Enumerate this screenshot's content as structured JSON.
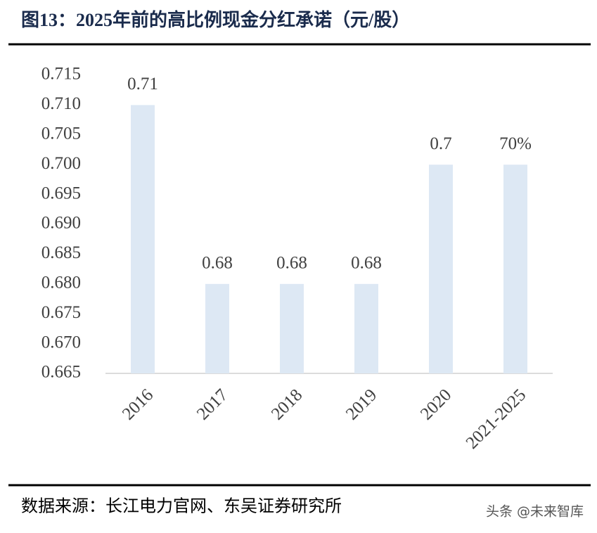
{
  "chart_data": {
    "type": "bar",
    "title": "图13：2025年前的高比例现金分红承诺（元/股）",
    "categories": [
      "2016",
      "2017",
      "2018",
      "2019",
      "2020",
      "2021-2025"
    ],
    "values": [
      0.71,
      0.68,
      0.68,
      0.68,
      0.7,
      0.7
    ],
    "value_labels": [
      "0.71",
      "0.68",
      "0.68",
      "0.68",
      "0.7",
      "70%"
    ],
    "color": "#dde8f4",
    "ylim": [
      0.665,
      0.715
    ],
    "yticks": [
      0.665,
      {
        "value": 0.67,
        "label": "0.670"
      },
      0.675,
      {
        "value": 0.68,
        "label": "0.680"
      },
      0.685,
      {
        "value": 0.69,
        "label": "0.690"
      },
      0.695,
      {
        "value": 0.7,
        "label": "0.700"
      },
      0.705,
      {
        "value": 0.71,
        "label": "0.710"
      },
      0.715
    ],
    "grid": false,
    "source": "数据来源：长江电力官网、东吴证券研究所"
  },
  "watermark": "头条 @未来智库"
}
